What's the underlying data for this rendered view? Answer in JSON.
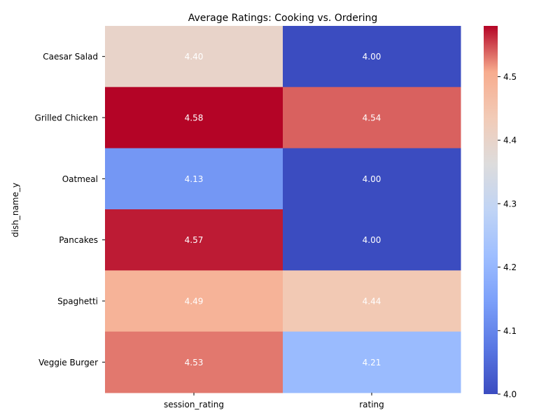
{
  "chart_data": {
    "type": "heatmap",
    "title": "Average Ratings: Cooking vs. Ordering",
    "xlabel": "",
    "ylabel": "dish_name_y",
    "columns": [
      "session_rating",
      "rating"
    ],
    "rows": [
      "Caesar Salad",
      "Grilled Chicken",
      "Oatmeal",
      "Pancakes",
      "Spaghetti",
      "Veggie Burger"
    ],
    "values": [
      [
        4.4,
        4.0
      ],
      [
        4.58,
        4.54
      ],
      [
        4.13,
        4.0
      ],
      [
        4.57,
        4.0
      ],
      [
        4.49,
        4.44
      ],
      [
        4.53,
        4.21
      ]
    ],
    "value_labels": [
      [
        "4.40",
        "4.00"
      ],
      [
        "4.58",
        "4.54"
      ],
      [
        "4.13",
        "4.00"
      ],
      [
        "4.57",
        "4.00"
      ],
      [
        "4.49",
        "4.44"
      ],
      [
        "4.53",
        "4.21"
      ]
    ],
    "colormap": "coolwarm",
    "color_range": [
      4.0,
      4.58
    ],
    "colorbar_ticks": [
      "4.0",
      "4.1",
      "4.2",
      "4.3",
      "4.4",
      "4.5"
    ],
    "colorbar_tick_values": [
      4.0,
      4.1,
      4.2,
      4.3,
      4.4,
      4.5
    ],
    "annotation_color": "#ffffff",
    "grid": false
  }
}
